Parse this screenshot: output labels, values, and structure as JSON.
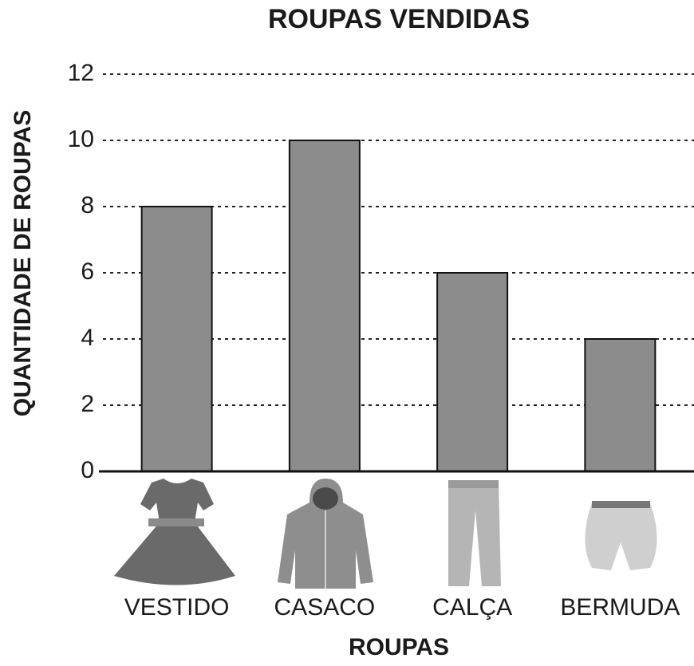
{
  "chart_data": {
    "type": "bar",
    "title": "ROUPAS VENDIDAS",
    "y_label": "QUANTIDADE DE ROUPAS",
    "x_label": "ROUPAS",
    "categories": [
      "VESTIDO",
      "CASACO",
      "CALÇA",
      "BERMUDA"
    ],
    "values": [
      8,
      10,
      6,
      4
    ],
    "color": "#8c8c8c",
    "ylim": [
      0,
      12
    ],
    "yticks": [
      0,
      2,
      4,
      6,
      8,
      10,
      12
    ],
    "grid": true
  }
}
